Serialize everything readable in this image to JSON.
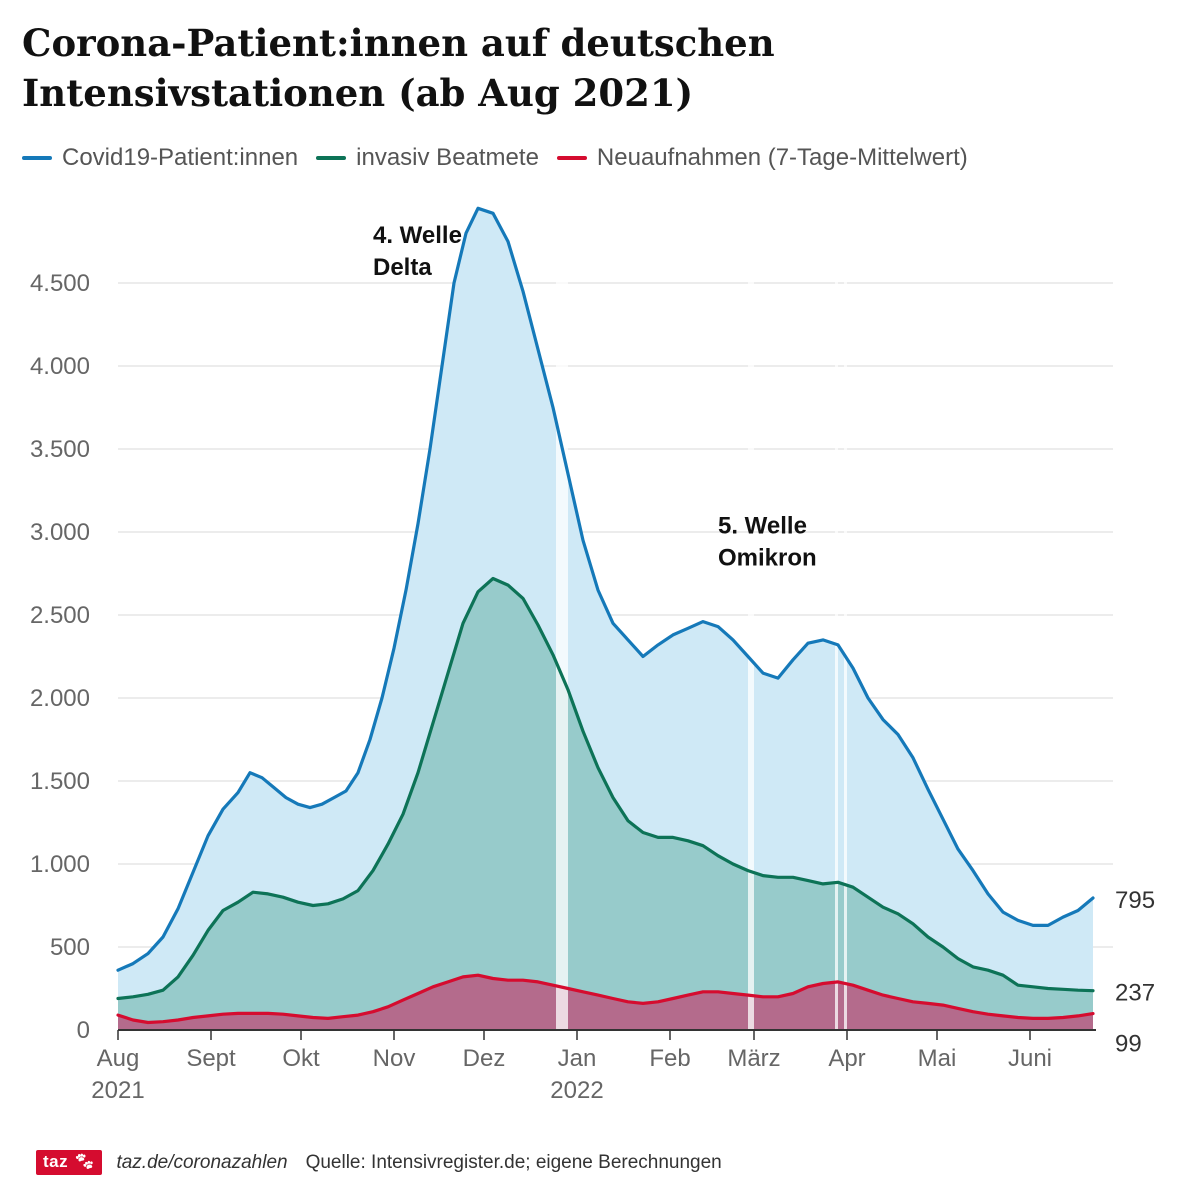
{
  "title_line1": "Corona-Patient:innen auf deutschen",
  "title_line2": "Intensivstationen (ab Aug 2021)",
  "colors": {
    "patients": "#1579b9",
    "patients_fill": "#cfe9f6",
    "ventilated": "#0d7357",
    "ventilated_fill": "#97cbcb",
    "admissions": "#d50c2f",
    "admissions_fill": "#b46b8c",
    "grid": "#e0e0e0",
    "axis": "#333333",
    "text": "#666666",
    "brand": "#d50c2f"
  },
  "footer": {
    "logo": "taz",
    "logo_icon": "paw-icon",
    "url": "taz.de/coronazahlen",
    "source": "Quelle: Intensivregister.de; eigene Berechnungen"
  },
  "chart_data": {
    "type": "area",
    "title": "Corona-Patient:innen auf deutschen Intensivstationen (ab Aug 2021)",
    "xlabel": "",
    "ylabel": "",
    "x_unit": "days since 1 Aug 2021",
    "xlim": [
      0,
      326
    ],
    "ylim": [
      0,
      5000
    ],
    "yticks": [
      0,
      500,
      1000,
      1500,
      2000,
      2500,
      3000,
      3500,
      4000,
      4500
    ],
    "ytick_labels": [
      "0",
      "500",
      "1.000",
      "1.500",
      "2.000",
      "2.500",
      "3.000",
      "3.500",
      "4.000",
      "4.500"
    ],
    "xticks": [
      {
        "x": 0,
        "label": "Aug",
        "sublabel": "2021"
      },
      {
        "x": 31,
        "label": "Sept"
      },
      {
        "x": 61,
        "label": "Okt"
      },
      {
        "x": 92,
        "label": "Nov"
      },
      {
        "x": 122,
        "label": "Dez"
      },
      {
        "x": 153,
        "label": "Jan",
        "sublabel": "2022"
      },
      {
        "x": 184,
        "label": "Feb"
      },
      {
        "x": 212,
        "label": "März"
      },
      {
        "x": 243,
        "label": "Apr"
      },
      {
        "x": 273,
        "label": "Mai"
      },
      {
        "x": 304,
        "label": "Juni"
      }
    ],
    "grid": true,
    "legend_position": "top-left",
    "series": [
      {
        "name": "Covid19-Patient:innen",
        "key": "patients",
        "end_label": "795",
        "points": [
          [
            0,
            360
          ],
          [
            5,
            400
          ],
          [
            10,
            460
          ],
          [
            15,
            560
          ],
          [
            20,
            730
          ],
          [
            25,
            950
          ],
          [
            30,
            1170
          ],
          [
            35,
            1330
          ],
          [
            40,
            1430
          ],
          [
            44,
            1550
          ],
          [
            48,
            1520
          ],
          [
            52,
            1460
          ],
          [
            56,
            1400
          ],
          [
            60,
            1360
          ],
          [
            64,
            1340
          ],
          [
            68,
            1360
          ],
          [
            72,
            1400
          ],
          [
            76,
            1440
          ],
          [
            80,
            1550
          ],
          [
            84,
            1750
          ],
          [
            88,
            2000
          ],
          [
            92,
            2300
          ],
          [
            96,
            2650
          ],
          [
            100,
            3050
          ],
          [
            104,
            3500
          ],
          [
            108,
            4000
          ],
          [
            112,
            4500
          ],
          [
            116,
            4800
          ],
          [
            120,
            4950
          ],
          [
            125,
            4920
          ],
          [
            130,
            4750
          ],
          [
            135,
            4450
          ],
          [
            140,
            4100
          ],
          [
            145,
            3750
          ],
          [
            150,
            3350
          ],
          [
            155,
            2950
          ],
          [
            160,
            2650
          ],
          [
            165,
            2450
          ],
          [
            170,
            2350
          ],
          [
            175,
            2250
          ],
          [
            180,
            2320
          ],
          [
            185,
            2380
          ],
          [
            190,
            2420
          ],
          [
            195,
            2460
          ],
          [
            200,
            2430
          ],
          [
            205,
            2350
          ],
          [
            210,
            2250
          ],
          [
            215,
            2150
          ],
          [
            220,
            2120
          ],
          [
            225,
            2230
          ],
          [
            230,
            2330
          ],
          [
            235,
            2350
          ],
          [
            240,
            2320
          ],
          [
            245,
            2180
          ],
          [
            250,
            2000
          ],
          [
            255,
            1870
          ],
          [
            260,
            1780
          ],
          [
            265,
            1640
          ],
          [
            270,
            1450
          ],
          [
            275,
            1270
          ],
          [
            280,
            1090
          ],
          [
            285,
            960
          ],
          [
            290,
            820
          ],
          [
            295,
            710
          ],
          [
            300,
            660
          ],
          [
            305,
            630
          ],
          [
            310,
            630
          ],
          [
            315,
            680
          ],
          [
            320,
            720
          ],
          [
            325,
            795
          ]
        ]
      },
      {
        "name": "invasiv Beatmete",
        "key": "ventilated",
        "end_label": "237",
        "points": [
          [
            0,
            190
          ],
          [
            5,
            200
          ],
          [
            10,
            215
          ],
          [
            15,
            240
          ],
          [
            20,
            320
          ],
          [
            25,
            450
          ],
          [
            30,
            600
          ],
          [
            35,
            720
          ],
          [
            40,
            770
          ],
          [
            45,
            830
          ],
          [
            50,
            820
          ],
          [
            55,
            800
          ],
          [
            60,
            770
          ],
          [
            65,
            750
          ],
          [
            70,
            760
          ],
          [
            75,
            790
          ],
          [
            80,
            840
          ],
          [
            85,
            960
          ],
          [
            90,
            1120
          ],
          [
            95,
            1300
          ],
          [
            100,
            1550
          ],
          [
            105,
            1850
          ],
          [
            110,
            2150
          ],
          [
            115,
            2450
          ],
          [
            120,
            2640
          ],
          [
            125,
            2720
          ],
          [
            130,
            2680
          ],
          [
            135,
            2600
          ],
          [
            140,
            2440
          ],
          [
            145,
            2260
          ],
          [
            150,
            2050
          ],
          [
            155,
            1800
          ],
          [
            160,
            1580
          ],
          [
            165,
            1400
          ],
          [
            170,
            1260
          ],
          [
            175,
            1190
          ],
          [
            180,
            1160
          ],
          [
            185,
            1160
          ],
          [
            190,
            1140
          ],
          [
            195,
            1110
          ],
          [
            200,
            1050
          ],
          [
            205,
            1000
          ],
          [
            210,
            960
          ],
          [
            215,
            930
          ],
          [
            220,
            920
          ],
          [
            225,
            920
          ],
          [
            230,
            900
          ],
          [
            235,
            880
          ],
          [
            240,
            890
          ],
          [
            245,
            860
          ],
          [
            250,
            800
          ],
          [
            255,
            740
          ],
          [
            260,
            700
          ],
          [
            265,
            640
          ],
          [
            270,
            560
          ],
          [
            275,
            500
          ],
          [
            280,
            430
          ],
          [
            285,
            380
          ],
          [
            290,
            360
          ],
          [
            295,
            330
          ],
          [
            300,
            270
          ],
          [
            305,
            260
          ],
          [
            310,
            250
          ],
          [
            315,
            245
          ],
          [
            320,
            240
          ],
          [
            325,
            237
          ]
        ]
      },
      {
        "name": "Neuaufnahmen (7-Tage-Mittelwert)",
        "key": "admissions",
        "end_label": "99",
        "points": [
          [
            0,
            90
          ],
          [
            5,
            60
          ],
          [
            10,
            45
          ],
          [
            15,
            50
          ],
          [
            20,
            60
          ],
          [
            25,
            75
          ],
          [
            30,
            85
          ],
          [
            35,
            95
          ],
          [
            40,
            100
          ],
          [
            45,
            100
          ],
          [
            50,
            100
          ],
          [
            55,
            95
          ],
          [
            60,
            85
          ],
          [
            65,
            75
          ],
          [
            70,
            70
          ],
          [
            75,
            80
          ],
          [
            80,
            90
          ],
          [
            85,
            110
          ],
          [
            90,
            140
          ],
          [
            95,
            180
          ],
          [
            100,
            220
          ],
          [
            105,
            260
          ],
          [
            110,
            290
          ],
          [
            115,
            320
          ],
          [
            120,
            330
          ],
          [
            125,
            310
          ],
          [
            130,
            300
          ],
          [
            135,
            300
          ],
          [
            140,
            290
          ],
          [
            145,
            270
          ],
          [
            150,
            250
          ],
          [
            155,
            230
          ],
          [
            160,
            210
          ],
          [
            165,
            190
          ],
          [
            170,
            170
          ],
          [
            175,
            160
          ],
          [
            180,
            170
          ],
          [
            185,
            190
          ],
          [
            190,
            210
          ],
          [
            195,
            230
          ],
          [
            200,
            230
          ],
          [
            205,
            220
          ],
          [
            210,
            210
          ],
          [
            215,
            200
          ],
          [
            220,
            200
          ],
          [
            225,
            220
          ],
          [
            230,
            260
          ],
          [
            235,
            280
          ],
          [
            240,
            290
          ],
          [
            245,
            270
          ],
          [
            250,
            240
          ],
          [
            255,
            210
          ],
          [
            260,
            190
          ],
          [
            265,
            170
          ],
          [
            270,
            160
          ],
          [
            275,
            150
          ],
          [
            280,
            130
          ],
          [
            285,
            110
          ],
          [
            290,
            95
          ],
          [
            295,
            85
          ],
          [
            300,
            75
          ],
          [
            305,
            70
          ],
          [
            310,
            70
          ],
          [
            315,
            75
          ],
          [
            320,
            85
          ],
          [
            325,
            99
          ]
        ]
      }
    ],
    "gaps": [
      [
        146,
        150
      ],
      [
        210,
        212
      ],
      [
        239,
        240
      ],
      [
        242,
        243
      ]
    ],
    "annotations": [
      {
        "x": 85,
        "y": 4740,
        "lines": [
          "4. Welle",
          "Delta"
        ]
      },
      {
        "x": 200,
        "y": 2990,
        "lines": [
          "5. Welle",
          "Omikron"
        ]
      }
    ]
  }
}
